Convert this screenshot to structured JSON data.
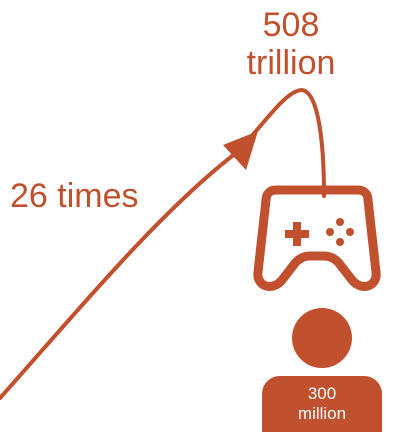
{
  "value_top": [
    "508",
    "trillion"
  ],
  "multiplier": "26 times",
  "value_bottom": [
    "300",
    "million"
  ],
  "colors": {
    "accent": "#c0502e",
    "text_on_accent": "#ffffff"
  },
  "icons": [
    "game-controller-icon",
    "person-icon",
    "arrow-icon"
  ]
}
